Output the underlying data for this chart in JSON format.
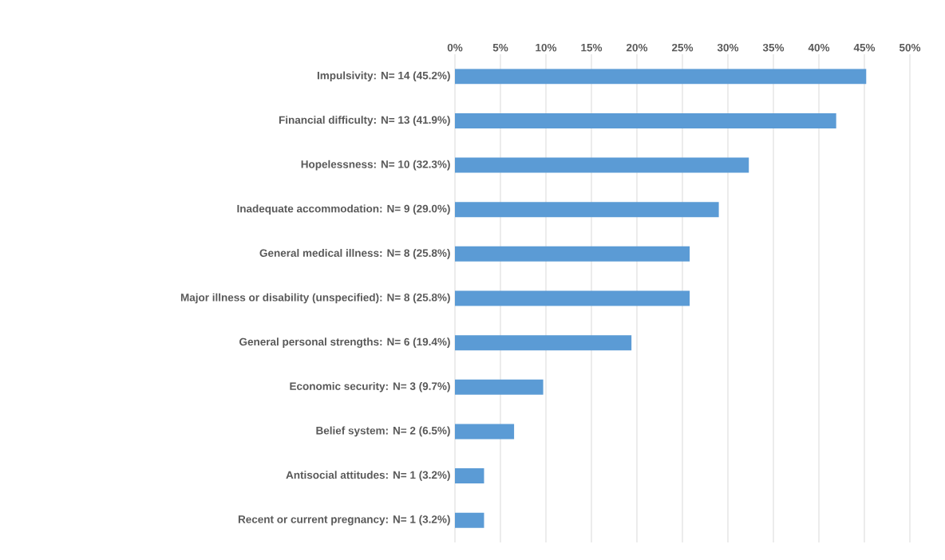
{
  "chart_data": {
    "type": "bar",
    "orientation": "horizontal",
    "categories": [
      "Impulsivity: N= 14 (45.2%)",
      "Financial difficulty: N= 13 (41.9%)",
      "Hopelessness: N= 10 (32.3%)",
      "Inadequate accommodation: N= 9 (29.0%)",
      "General medical illness: N= 8 (25.8%)",
      "Major illness or disability (unspecified): N= 8 (25.8%)",
      "General personal strengths: N= 6 (19.4%)",
      "Economic security: N= 3 (9.7%)",
      "Belief system: N= 2 (6.5%)",
      "Antisocial attitudes: N= 1 (3.2%)",
      "Recent or current pregnancy: N= 1 (3.2%)"
    ],
    "values": [
      45.2,
      41.9,
      32.3,
      29.0,
      25.8,
      25.8,
      19.4,
      9.7,
      6.5,
      3.2,
      3.2
    ],
    "color": "#5b9bd5",
    "xlim": [
      0,
      50
    ],
    "xticks": [
      {
        "value": 0,
        "label": "0%"
      },
      {
        "value": 5,
        "label": "5%"
      },
      {
        "value": 10,
        "label": "10%"
      },
      {
        "value": 15,
        "label": "15%"
      },
      {
        "value": 20,
        "label": "20%"
      },
      {
        "value": 25,
        "label": "25%"
      },
      {
        "value": 30,
        "label": "30%"
      },
      {
        "value": 35,
        "label": "35%"
      },
      {
        "value": 40,
        "label": "40%"
      },
      {
        "value": 45,
        "label": "45%"
      },
      {
        "value": 50,
        "label": "50%"
      }
    ],
    "grid": "x"
  }
}
